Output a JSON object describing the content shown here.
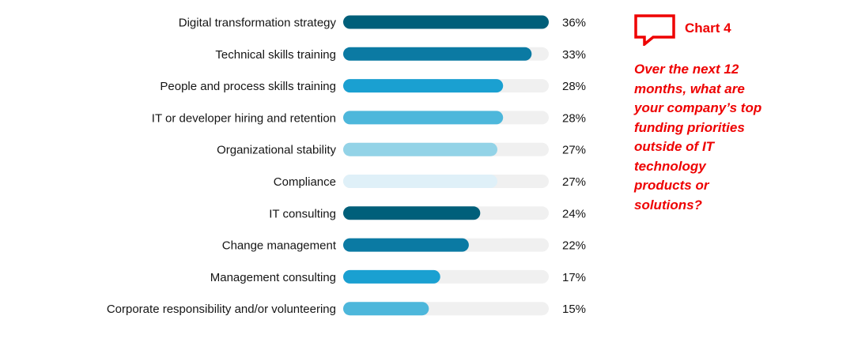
{
  "chart_data": {
    "type": "bar",
    "orientation": "horizontal",
    "categories": [
      "Digital transformation strategy",
      "Technical skills training",
      "People and process skills training",
      "IT or developer hiring and retention",
      "Organizational stability",
      "Compliance",
      "IT consulting",
      "Change management",
      "Management consulting",
      "Corporate responsibility and/or volunteering"
    ],
    "values": [
      36,
      33,
      28,
      28,
      27,
      27,
      24,
      22,
      17,
      15
    ],
    "value_labels": [
      "36%",
      "33%",
      "28%",
      "28%",
      "27%",
      "27%",
      "24%",
      "22%",
      "17%",
      "15%"
    ],
    "bar_colors": [
      "#005f7a",
      "#0b7aa3",
      "#1aa0d1",
      "#4db7db",
      "#93d3e7",
      "#dff0f8",
      "#005f7a",
      "#0b7aa3",
      "#1aa0d1",
      "#4db7db"
    ],
    "track_color": "#f0f0f0",
    "xlim": [
      0,
      36
    ],
    "title": "Chart 4",
    "xlabel": "",
    "ylabel": ""
  },
  "sidebar": {
    "chart_label": "Chart 4",
    "question": "Over the next 12 months, what are your company’s top funding priorities outside of IT technology products or solutions?",
    "accent_color": "#ee0000"
  }
}
